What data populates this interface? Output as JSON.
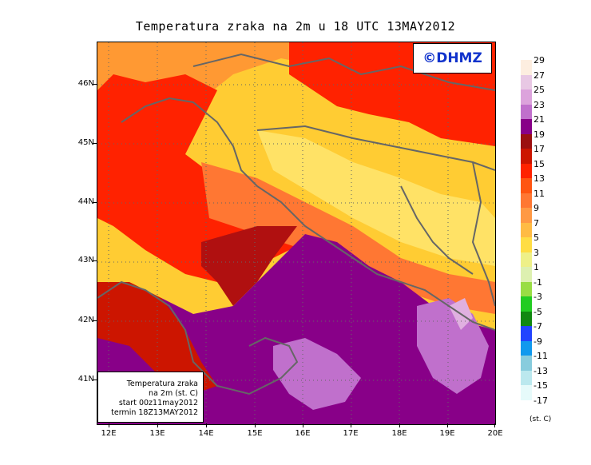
{
  "title": "Temperatura zraka na 2m u 18 UTC 13MAY2012",
  "logo": "©DHMZ",
  "info_box": {
    "line1": "Temperatura zraka",
    "line2": "na 2m (st. C)",
    "line3": "start 00z11may2012",
    "line4": "termin 18Z13MAY2012"
  },
  "latitude_labels": [
    "46N",
    "45N",
    "44N",
    "43N",
    "42N",
    "41N"
  ],
  "longitude_labels": [
    "12E",
    "13E",
    "14E",
    "15E",
    "16E",
    "17E",
    "18E",
    "19E",
    "20E"
  ],
  "legend": {
    "unit": "(st. C)",
    "labels": [
      "29",
      "27",
      "25",
      "23",
      "21",
      "19",
      "17",
      "15",
      "13",
      "11",
      "9",
      "7",
      "5",
      "3",
      "1",
      "-1",
      "-3",
      "-5",
      "-7",
      "-9",
      "-11",
      "-13",
      "-15",
      "-17"
    ],
    "colors": [
      "#fdeee0",
      "#e8c8e4",
      "#dca3dc",
      "#c070cc",
      "#880088",
      "#9b1010",
      "#cc1500",
      "#ff2200",
      "#ff5511",
      "#ff7733",
      "#ff9944",
      "#ffbb44",
      "#ffdd44",
      "#eef088",
      "#ddf0b0",
      "#99dd44",
      "#22cc22",
      "#118811",
      "#2244ff",
      "#1199ee",
      "#88ccdd",
      "#bbe8ee",
      "#e6fafa"
    ]
  },
  "colors": {
    "deep_purple": "#880088",
    "light_purple": "#c070cc",
    "red": "#ff2200",
    "orange": "#ff7733",
    "yellow": "#ffdd44",
    "coast_line": "#666666"
  }
}
